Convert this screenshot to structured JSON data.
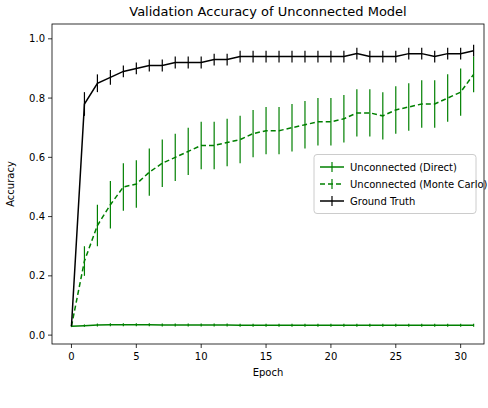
{
  "chart_data": {
    "type": "line",
    "title": "Validation Accuracy of Unconnected Model",
    "x_label": "Epoch",
    "y_label": "Accuracy",
    "x": [
      0,
      1,
      2,
      3,
      4,
      5,
      6,
      7,
      8,
      9,
      10,
      11,
      12,
      13,
      14,
      15,
      16,
      17,
      18,
      19,
      20,
      21,
      22,
      23,
      24,
      25,
      26,
      27,
      28,
      29,
      30,
      31
    ],
    "xlim": [
      -1.5,
      31.8
    ],
    "ylim": [
      -0.03,
      1.05
    ],
    "xticks": [
      0,
      5,
      10,
      15,
      20,
      25,
      30
    ],
    "yticks": [
      {
        "value": 0,
        "label": "0.0"
      },
      0.2,
      0.4,
      0.6,
      0.8,
      {
        "value": 1,
        "label": "1.0"
      }
    ],
    "legend": "center right",
    "series": [
      {
        "name": "Unconnected (Direct)",
        "color": "#008000",
        "line_style": "solid",
        "values": [
          0.03,
          0.032,
          0.034,
          0.035,
          0.035,
          0.035,
          0.035,
          0.034,
          0.034,
          0.034,
          0.034,
          0.034,
          0.034,
          0.033,
          0.033,
          0.033,
          0.033,
          0.033,
          0.033,
          0.033,
          0.033,
          0.033,
          0.033,
          0.033,
          0.033,
          0.033,
          0.033,
          0.033,
          0.033,
          0.033,
          0.033,
          0.033
        ],
        "errors": [
          0.003,
          0.004,
          0.005,
          0.005,
          0.005,
          0.005,
          0.005,
          0.005,
          0.005,
          0.005,
          0.005,
          0.005,
          0.005,
          0.005,
          0.005,
          0.005,
          0.005,
          0.005,
          0.005,
          0.005,
          0.005,
          0.005,
          0.005,
          0.005,
          0.005,
          0.005,
          0.005,
          0.005,
          0.005,
          0.005,
          0.005,
          0.005
        ]
      },
      {
        "name": "Unconnected (Monte Carlo)",
        "color": "#008000",
        "line_style": "dashed",
        "values": [
          0.03,
          0.25,
          0.37,
          0.44,
          0.5,
          0.51,
          0.55,
          0.58,
          0.6,
          0.62,
          0.64,
          0.64,
          0.65,
          0.66,
          0.68,
          0.69,
          0.69,
          0.7,
          0.71,
          0.72,
          0.72,
          0.73,
          0.75,
          0.75,
          0.74,
          0.76,
          0.77,
          0.78,
          0.78,
          0.8,
          0.82,
          0.88
        ],
        "errors": [
          0.0,
          0.05,
          0.07,
          0.08,
          0.08,
          0.08,
          0.08,
          0.08,
          0.08,
          0.08,
          0.08,
          0.08,
          0.08,
          0.08,
          0.08,
          0.08,
          0.08,
          0.08,
          0.08,
          0.08,
          0.08,
          0.08,
          0.08,
          0.08,
          0.08,
          0.08,
          0.08,
          0.08,
          0.08,
          0.08,
          0.08,
          0.06
        ]
      },
      {
        "name": "Ground Truth",
        "color": "#000000",
        "line_style": "solid",
        "values": [
          0.03,
          0.78,
          0.85,
          0.87,
          0.89,
          0.9,
          0.91,
          0.91,
          0.92,
          0.92,
          0.92,
          0.93,
          0.93,
          0.94,
          0.94,
          0.94,
          0.94,
          0.94,
          0.94,
          0.94,
          0.94,
          0.94,
          0.95,
          0.94,
          0.94,
          0.94,
          0.95,
          0.95,
          0.94,
          0.95,
          0.95,
          0.96
        ],
        "errors": [
          0.0,
          0.04,
          0.03,
          0.025,
          0.02,
          0.02,
          0.02,
          0.02,
          0.02,
          0.02,
          0.02,
          0.02,
          0.02,
          0.02,
          0.02,
          0.02,
          0.02,
          0.02,
          0.02,
          0.02,
          0.02,
          0.02,
          0.02,
          0.02,
          0.02,
          0.02,
          0.02,
          0.02,
          0.02,
          0.02,
          0.02,
          0.02
        ]
      }
    ]
  }
}
